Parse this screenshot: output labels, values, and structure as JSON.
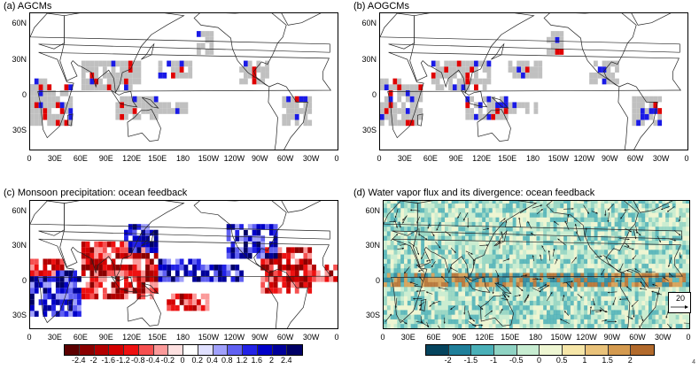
{
  "panels": {
    "a": {
      "title": "(a) AGCMs"
    },
    "b": {
      "title": "(b) AOGCMs"
    },
    "c": {
      "title": "(c) Monsoon precipitation: ocean feedback"
    },
    "d": {
      "title": "(d) Water vapor flux and its divergence: ocean feedback"
    }
  },
  "axes": {
    "lat_ticks": [
      "60N",
      "30N",
      "0",
      "30S"
    ],
    "lon_ticks": [
      "0",
      "30E",
      "60E",
      "90E",
      "120E",
      "150E",
      "180",
      "150W",
      "120W",
      "90W",
      "60W",
      "30W",
      "0"
    ]
  },
  "colorbar_c": {
    "labels": [
      "-2.4",
      "-2",
      "-1.6",
      "-1.2",
      "-0.8",
      "-0.4",
      "-0.2",
      "0",
      "0.2",
      "0.4",
      "0.8",
      "1.2",
      "1.6",
      "2",
      "2.4"
    ],
    "colors": [
      "#5c0000",
      "#8b0000",
      "#b30000",
      "#d40000",
      "#ee1111",
      "#f65050",
      "#fb9a9a",
      "#fde0e0",
      "#ffffff",
      "#e0e0ff",
      "#a0a0fb",
      "#6060f2",
      "#2222e6",
      "#0000c8",
      "#00009a",
      "#000066"
    ]
  },
  "colorbar_d": {
    "labels": [
      "-2",
      "-1.5",
      "-1",
      "-0.5",
      "0",
      "0.5",
      "1",
      "1.5",
      "2"
    ],
    "colors": [
      "#05445e",
      "#1f7f9a",
      "#4ab0b8",
      "#8fd3c3",
      "#c7ecd1",
      "#eef6d2",
      "#f6e6a8",
      "#e9c27a",
      "#d49a4f",
      "#b26a2c"
    ]
  },
  "reference_vector": {
    "label": "20"
  },
  "page_number": "4"
}
